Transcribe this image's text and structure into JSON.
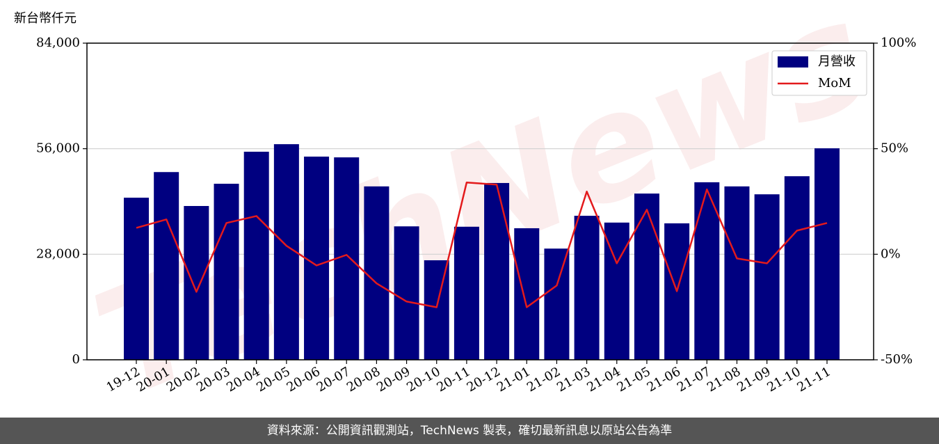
{
  "chart_data": {
    "type": "bar_line",
    "y_axis_label": "新台幣仟元",
    "watermark": "TechNews",
    "footer": "資料來源：公開資訊觀測站，TechNews 製表，確切最新訊息以原站公告為準",
    "categories": [
      "19-12",
      "20-01",
      "20-02",
      "20-03",
      "20-04",
      "20-05",
      "20-06",
      "20-07",
      "20-08",
      "20-09",
      "20-10",
      "20-11",
      "20-12",
      "21-01",
      "21-02",
      "21-03",
      "21-04",
      "21-05",
      "21-06",
      "21-07",
      "21-08",
      "21-09",
      "21-10",
      "21-11"
    ],
    "series": [
      {
        "name": "月營收",
        "type": "bar",
        "color": "#000080",
        "values": [
          43000,
          49800,
          40800,
          46700,
          55200,
          57200,
          53900,
          53700,
          46000,
          35400,
          26400,
          35300,
          46900,
          34900,
          29500,
          38200,
          36400,
          44100,
          36200,
          47100,
          46000,
          43900,
          48700,
          56100
        ]
      },
      {
        "name": "MoM",
        "type": "line",
        "axis": "y2",
        "color": "#e31a1c",
        "values": [
          12.5,
          16.5,
          -17.8,
          14.8,
          18.1,
          4.0,
          -5.3,
          -0.3,
          -13.8,
          -22.4,
          -25.1,
          34.0,
          33.0,
          -25.1,
          -14.8,
          29.7,
          -4.3,
          21.1,
          -17.5,
          30.7,
          -2.0,
          -4.3,
          11.2,
          14.8
        ]
      }
    ],
    "ylim": [
      0,
      84000
    ],
    "yticks": [
      {
        "value": 0,
        "label": "0"
      },
      {
        "value": 28000,
        "label": "28,000"
      },
      {
        "value": 56000,
        "label": "56,000"
      },
      {
        "value": 84000,
        "label": "84,000"
      }
    ],
    "y2lim": [
      -50,
      100
    ],
    "y2ticks": [
      {
        "value": -50,
        "label": "-50%"
      },
      {
        "value": 0,
        "label": "0%"
      },
      {
        "value": 50,
        "label": "50%"
      },
      {
        "value": 100,
        "label": "100%"
      }
    ],
    "grid": true,
    "legend": "upper right"
  }
}
